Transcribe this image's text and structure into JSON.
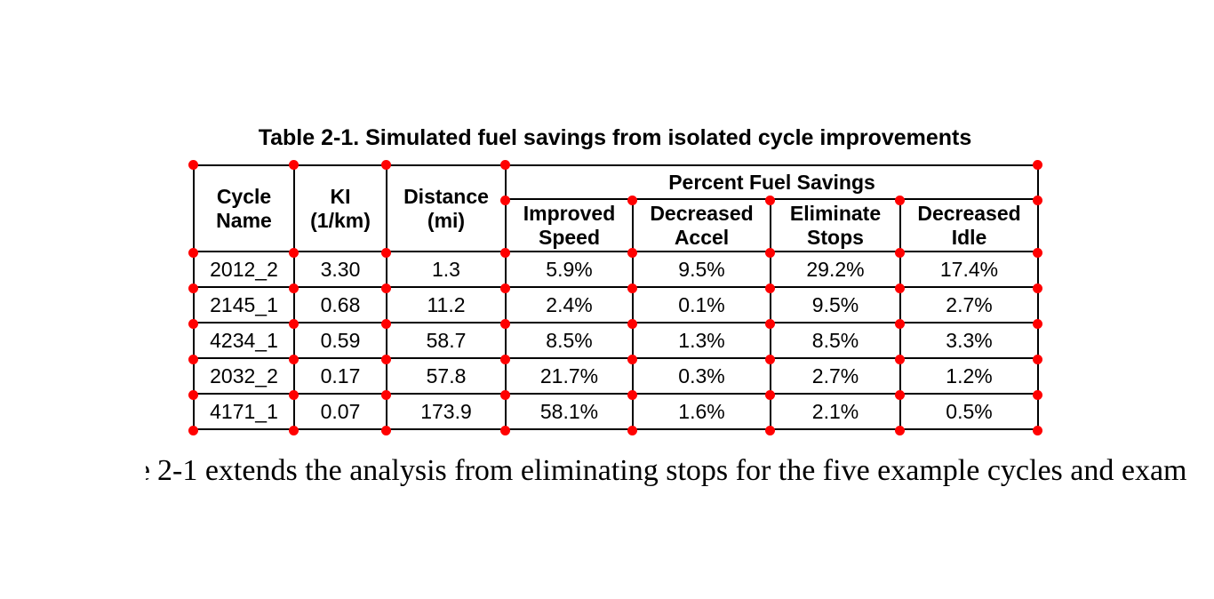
{
  "title": "Table 2-1. Simulated fuel savings from isolated cycle improvements",
  "table": {
    "main_headers": [
      "Cycle\nName",
      "KI\n(1/km)",
      "Distance\n(mi)"
    ],
    "group_header": "Percent Fuel Savings",
    "sub_headers": [
      "Improved\nSpeed",
      "Decreased\nAccel",
      "Eliminate\nStops",
      "Decreased\nIdle"
    ],
    "rows": [
      [
        "2012_2",
        "3.30",
        "1.3",
        "5.9%",
        "9.5%",
        "29.2%",
        "17.4%"
      ],
      [
        "2145_1",
        "0.68",
        "11.2",
        "2.4%",
        "0.1%",
        "9.5%",
        "2.7%"
      ],
      [
        "4234_1",
        "0.59",
        "58.7",
        "8.5%",
        "1.3%",
        "8.5%",
        "3.3%"
      ],
      [
        "2032_2",
        "0.17",
        "57.8",
        "21.7%",
        "0.3%",
        "2.7%",
        "1.2%"
      ],
      [
        "4171_1",
        "0.07",
        "173.9",
        "58.1%",
        "1.6%",
        "2.1%",
        "0.5%"
      ]
    ]
  },
  "body_text": {
    "fragment": "e",
    "text": "2-1 extends the analysis from eliminating stops for the five example cycles and exam"
  },
  "colors": {
    "grid_marker": "#ff0000",
    "table_line": "#000000",
    "text": "#000000",
    "background": "#ffffff"
  }
}
